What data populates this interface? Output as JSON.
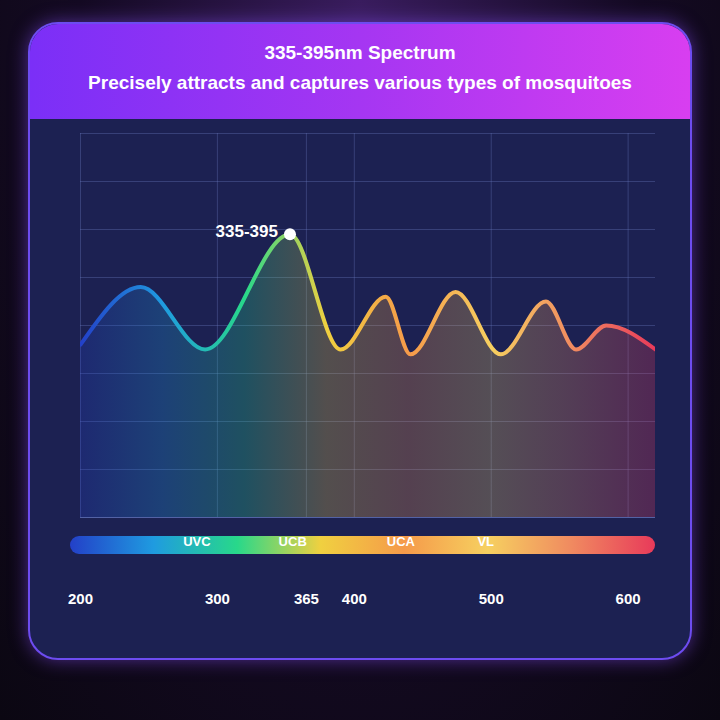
{
  "chart_data": {
    "type": "line",
    "title": "335-395nm Spectrum",
    "subtitle": "Precisely attracts and captures various types of mosquitoes",
    "x": [
      200,
      244,
      291,
      353,
      390,
      423,
      441,
      474,
      507,
      540,
      562,
      584,
      620
    ],
    "values": [
      3.6,
      4.8,
      3.5,
      5.9,
      3.5,
      4.6,
      3.4,
      4.7,
      3.4,
      4.5,
      3.5,
      4.0,
      3.5
    ],
    "xlim": [
      200,
      620
    ],
    "xticks": [
      200,
      300,
      365,
      400,
      500,
      600
    ],
    "ylim": [
      0,
      8
    ],
    "yticks": [
      0,
      1,
      2,
      3,
      4,
      5,
      6,
      7,
      8
    ],
    "grid": true,
    "tick_labels": "x",
    "colors": [
      "#2340c8",
      "#1f9be0",
      "#28d88a",
      "#f0d040",
      "#f59a4a",
      "#f6d060",
      "#f08a60",
      "#e83a5a"
    ],
    "annotations": [
      {
        "text": "335-395",
        "x": 353,
        "y": 5.9
      }
    ],
    "bands": [
      {
        "label": "UVC",
        "x": 285
      },
      {
        "label": "UCB",
        "x": 355
      },
      {
        "label": "UCA",
        "x": 434
      },
      {
        "label": "VL",
        "x": 496
      }
    ]
  }
}
